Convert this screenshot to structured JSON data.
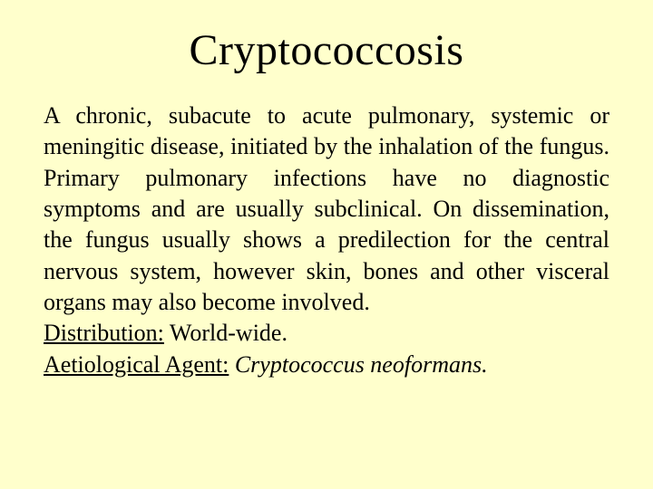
{
  "background_color": "#ffffcc",
  "text_color": "#000000",
  "title": {
    "text": "Cryptococcosis",
    "font_family": "Comic Sans MS",
    "font_size_pt": 36,
    "align": "center"
  },
  "body": {
    "font_family": "Times New Roman",
    "font_size_pt": 20,
    "align": "justify",
    "description": "A chronic, subacute to acute pulmonary, systemic or meningitic disease, initiated by the inhalation of the fungus.  Primary pulmonary infections have no diagnostic symptoms and are usually subclinical.  On dissemination, the fungus usually shows a predilection for the central nervous system, however skin, bones and other visceral organs may also become involved.",
    "distribution_label": "Distribution:",
    "distribution_value": "  World-wide.",
    "agent_label": "Aetiological Agent:",
    "agent_value": "  Cryptococcus neoformans."
  }
}
